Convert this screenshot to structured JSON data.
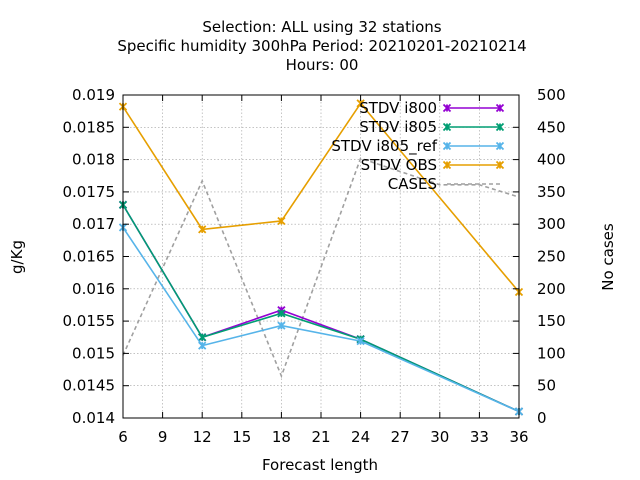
{
  "chart_data": {
    "type": "line",
    "title_lines": [
      "Selection: ALL using    32 stations",
      "Specific humidity 300hPa   Period: 20210201-20210214",
      "Hours:  00"
    ],
    "xlabel": "Forecast length",
    "ylabel": "g/Kg",
    "y2label": "No cases",
    "xlim": [
      6,
      36
    ],
    "ylim": [
      0.014,
      0.019
    ],
    "y2lim": [
      0,
      500
    ],
    "xticks": [
      6,
      9,
      12,
      15,
      18,
      21,
      24,
      27,
      30,
      33,
      36
    ],
    "yticks": [
      "0.014",
      "0.0145",
      "0.015",
      "0.0155",
      "0.016",
      "0.0165",
      "0.017",
      "0.0175",
      "0.018",
      "0.0185",
      "0.019"
    ],
    "y2ticks": [
      0,
      50,
      100,
      150,
      200,
      250,
      300,
      350,
      400,
      450,
      500
    ],
    "grid": true,
    "legend_position": "top-right",
    "x": [
      6,
      12,
      18,
      24,
      36
    ],
    "series": [
      {
        "name": "STDV i800",
        "color": "#9400d3",
        "marker": "x",
        "values": [
          0.0173,
          0.01525,
          0.01567,
          0.01522,
          0.0141
        ]
      },
      {
        "name": "STDV i805",
        "color": "#009e73",
        "marker": "x",
        "values": [
          0.0173,
          0.01525,
          0.01562,
          0.01522,
          0.0141
        ]
      },
      {
        "name": "STDV i805_ref",
        "color": "#56b4e9",
        "marker": "x",
        "values": [
          0.01695,
          0.01512,
          0.01543,
          0.01519,
          0.0141
        ]
      },
      {
        "name": "STDV OBS",
        "color": "#e69f00",
        "marker": "x",
        "values": [
          0.01882,
          0.01692,
          0.01705,
          0.01887,
          0.01595
        ]
      }
    ],
    "cases": {
      "name": "CASES",
      "color": "#a0a0a0",
      "axis": "y2",
      "x": [
        6,
        12,
        18,
        24,
        30,
        33,
        36
      ],
      "values": [
        97,
        367,
        65,
        402,
        361,
        361,
        342
      ]
    }
  }
}
